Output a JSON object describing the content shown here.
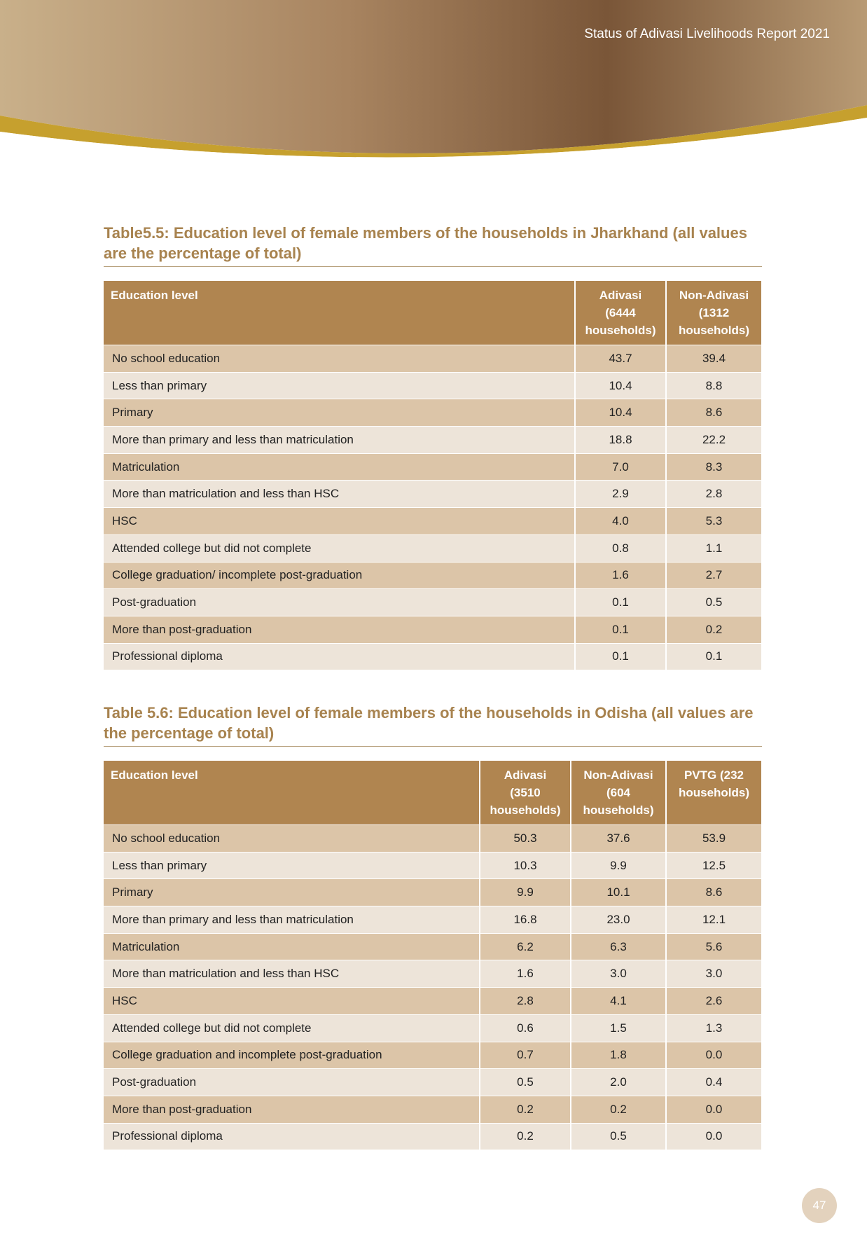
{
  "header": {
    "title": "Status of Adivasi Livelihoods Report 2021"
  },
  "tables": [
    {
      "title": "Table5.5: Education level of female members of the households in Jharkhand (all values are the percentage of total)",
      "columns": [
        "Education level",
        "Adivasi (6444 households)",
        "Non-Adivasi (1312 households)"
      ],
      "rows": [
        [
          "No school education",
          "43.7",
          "39.4"
        ],
        [
          "Less than primary",
          "10.4",
          "8.8"
        ],
        [
          "Primary",
          "10.4",
          "8.6"
        ],
        [
          "More than primary and less than matriculation",
          "18.8",
          "22.2"
        ],
        [
          "Matriculation",
          "7.0",
          "8.3"
        ],
        [
          "More than matriculation and less than HSC",
          "2.9",
          "2.8"
        ],
        [
          "HSC",
          "4.0",
          "5.3"
        ],
        [
          "Attended college but did not complete",
          "0.8",
          "1.1"
        ],
        [
          "College graduation/ incomplete post-graduation",
          "1.6",
          "2.7"
        ],
        [
          "Post-graduation",
          "0.1",
          "0.5"
        ],
        [
          "More than post-graduation",
          "0.1",
          "0.2"
        ],
        [
          "Professional diploma",
          "0.1",
          "0.1"
        ]
      ]
    },
    {
      "title": "Table 5.6: Education level of female members of the households in Odisha (all values are the percentage of total)",
      "columns": [
        "Education level",
        "Adivasi (3510 households)",
        "Non-Adivasi (604 households)",
        "PVTG (232 households)"
      ],
      "rows": [
        [
          "No school education",
          "50.3",
          "37.6",
          "53.9"
        ],
        [
          "Less than primary",
          "10.3",
          "9.9",
          "12.5"
        ],
        [
          "Primary",
          "9.9",
          "10.1",
          "8.6"
        ],
        [
          "More than primary and less than matriculation",
          "16.8",
          "23.0",
          "12.1"
        ],
        [
          "Matriculation",
          "6.2",
          "6.3",
          "5.6"
        ],
        [
          "More than matriculation and less than HSC",
          "1.6",
          "3.0",
          "3.0"
        ],
        [
          "HSC",
          "2.8",
          "4.1",
          "2.6"
        ],
        [
          "Attended college but did not complete",
          "0.6",
          "1.5",
          "1.3"
        ],
        [
          "College graduation and incomplete post-graduation",
          "0.7",
          "1.8",
          "0.0"
        ],
        [
          "Post-graduation",
          "0.5",
          "2.0",
          "0.4"
        ],
        [
          "More than post-graduation",
          "0.2",
          "0.2",
          "0.0"
        ],
        [
          "Professional diploma",
          "0.2",
          "0.5",
          "0.0"
        ]
      ]
    }
  ],
  "page_number": "47"
}
